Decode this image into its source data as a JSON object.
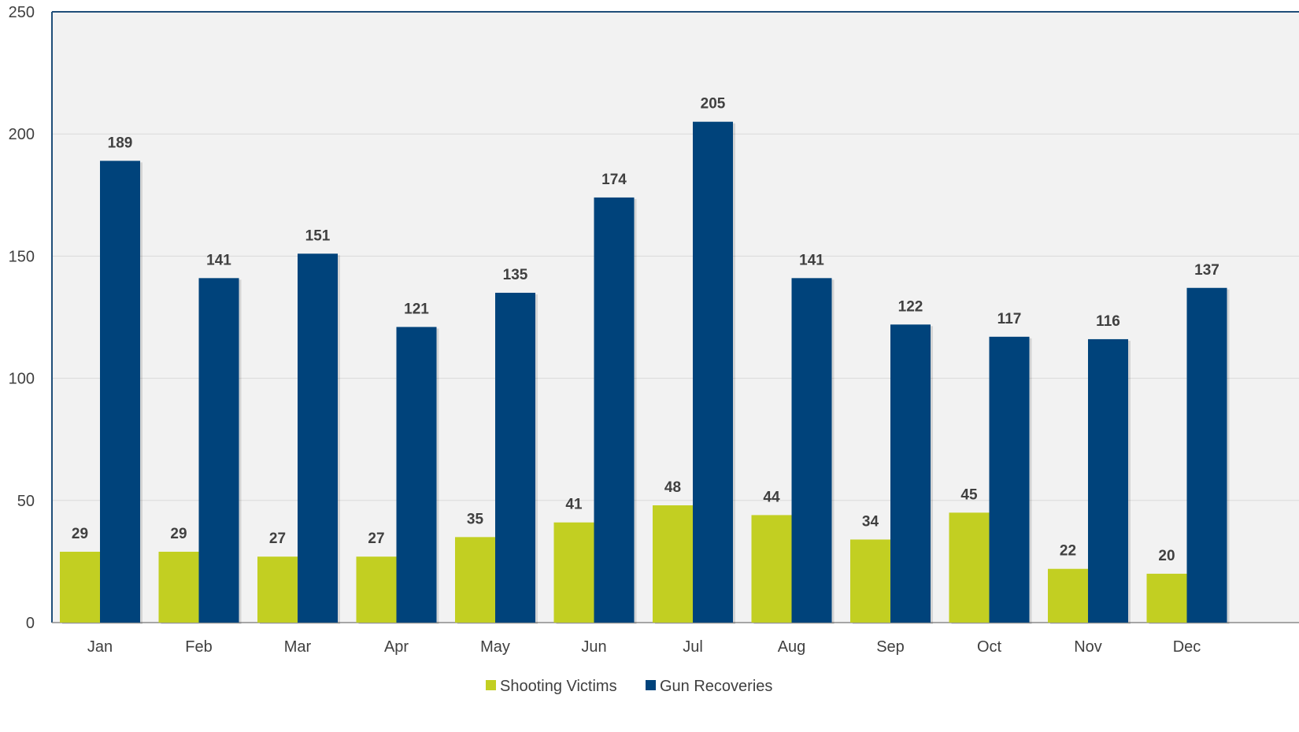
{
  "chart_data": {
    "type": "bar",
    "title": "",
    "xlabel": "",
    "ylabel": "",
    "ylim": [
      0,
      250
    ],
    "yticks": [
      0,
      50,
      100,
      150,
      200,
      250
    ],
    "grid": true,
    "legend_position": "bottom-center",
    "categories": [
      "Jan",
      "Feb",
      "Mar",
      "Apr",
      "May",
      "Jun",
      "Jul",
      "Aug",
      "Sep",
      "Oct",
      "Nov",
      "Dec"
    ],
    "series": [
      {
        "name": "Shooting Victims",
        "color": "#c2cf22",
        "values": [
          29,
          29,
          27,
          27,
          35,
          41,
          48,
          44,
          34,
          45,
          22,
          20
        ]
      },
      {
        "name": "Gun Recoveries",
        "color": "#00437b",
        "values": [
          189,
          141,
          151,
          121,
          135,
          174,
          205,
          141,
          122,
          117,
          116,
          137
        ]
      }
    ],
    "colors": {
      "plot_background": "#f2f2f2",
      "gridline": "#d9d9d9",
      "axis_line": "#1f4e79",
      "text": "#404040"
    }
  }
}
